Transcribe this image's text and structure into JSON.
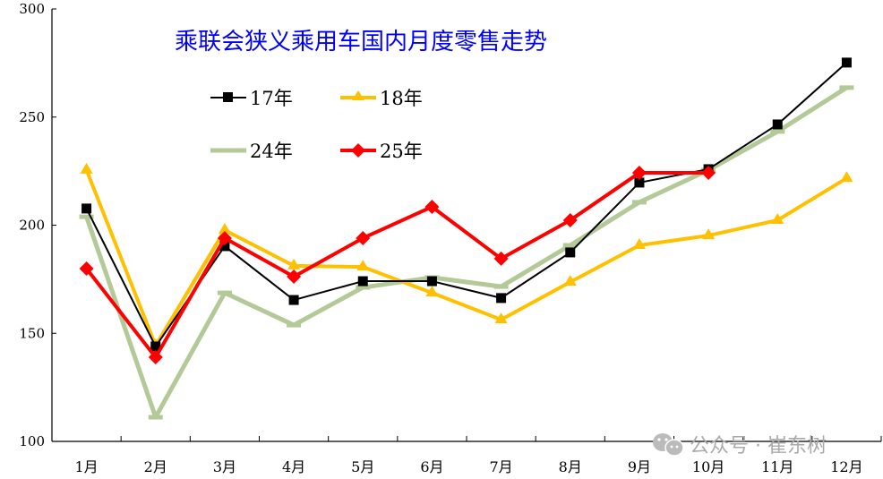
{
  "chart_data": {
    "type": "line",
    "title": "乘联会狭义乘用车国内月度零售走势",
    "xlabel": "",
    "ylabel": "",
    "categories": [
      "1月",
      "2月",
      "3月",
      "4月",
      "5月",
      "6月",
      "7月",
      "8月",
      "9月",
      "10月",
      "11月",
      "12月"
    ],
    "ylim": [
      100,
      300
    ],
    "yticks": [
      100,
      150,
      200,
      250,
      300
    ],
    "grid": false,
    "legend_position": "upper-left-inside",
    "series": [
      {
        "name": "17年",
        "color": "#000000",
        "marker": "square",
        "line_width": 2,
        "values": [
          207.7,
          143.9,
          190.3,
          165.4,
          174.1,
          174.1,
          166.3,
          187.4,
          219.7,
          225.9,
          246.6,
          275.2
        ]
      },
      {
        "name": "18年",
        "color": "#ffc000",
        "marker": "triangle",
        "line_width": 4,
        "values": [
          225.5,
          144.3,
          197.7,
          181.2,
          180.7,
          168.7,
          156.3,
          173.7,
          190.7,
          195.2,
          202.3,
          221.7
        ]
      },
      {
        "name": "24年",
        "color": "#b3c997",
        "marker": "dash",
        "line_width": 5,
        "values": [
          203.9,
          111.2,
          168.7,
          153.8,
          171.2,
          175.8,
          171.6,
          190.7,
          210.6,
          225.5,
          243.3,
          263.6
        ]
      },
      {
        "name": "25年",
        "color": "#ff0000",
        "marker": "diamond",
        "line_width": 4,
        "values": [
          179.9,
          138.9,
          194.0,
          176.2,
          194.0,
          208.5,
          184.5,
          202.3,
          224.2,
          224.2,
          null,
          null
        ]
      }
    ]
  },
  "legend": {
    "items": [
      {
        "label": "17年"
      },
      {
        "label": "18年"
      },
      {
        "label": "24年"
      },
      {
        "label": "25年"
      }
    ]
  },
  "watermark": {
    "text": "公众号 · 崔东树",
    "icon": "wechat-icon"
  }
}
